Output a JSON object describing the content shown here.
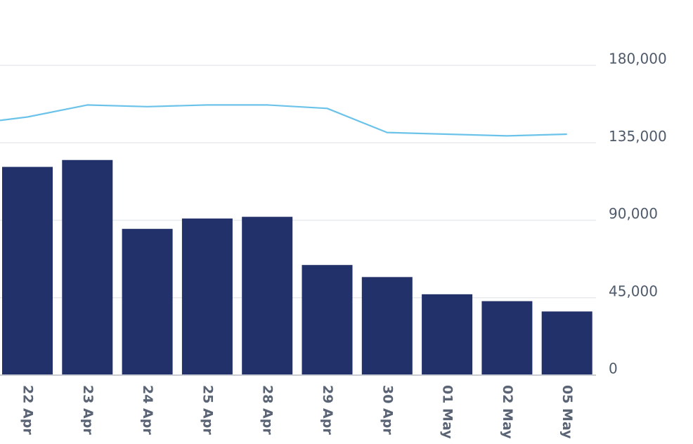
{
  "chart_data": {
    "type": "bar",
    "categories": [
      "22 Apr",
      "23 Apr",
      "24 Apr",
      "25 Apr",
      "28 Apr",
      "29 Apr",
      "30 Apr",
      "01 May",
      "02 May",
      "05 May"
    ],
    "series": [
      {
        "type": "bar",
        "color": "#23316b",
        "values": [
          121000,
          125000,
          85000,
          91000,
          92000,
          64000,
          57000,
          47000,
          43000,
          37000
        ]
      },
      {
        "type": "line",
        "color": "#6cc3ea",
        "values": [
          150000,
          157000,
          156000,
          157000,
          157000,
          155000,
          141000,
          140000,
          139000,
          140000
        ],
        "leading_value": 148000
      }
    ],
    "yticks": [
      "0",
      "45,000",
      "90,000",
      "135,000",
      "180,000"
    ],
    "ytick_values": [
      0,
      45000,
      90000,
      135000,
      180000
    ],
    "ylim": [
      0,
      198000
    ],
    "grid": true,
    "yaxis_side": "right",
    "xtick_rotation": "vertical",
    "colors": {
      "grid": "#e8eaee",
      "axis": "#c9ccd2",
      "tick_text": "#4f5a6b"
    }
  }
}
